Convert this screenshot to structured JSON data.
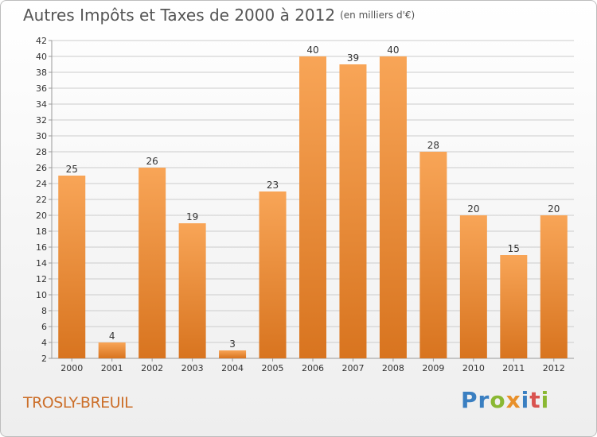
{
  "header": {
    "title": "Autres Impôts et Taxes de 2000 à 2012",
    "unit": "(en milliers d'€)"
  },
  "footer": {
    "commune": "TROSLY-BREUIL",
    "logo_letters": [
      {
        "ch": "P",
        "color": "#3a7fc1"
      },
      {
        "ch": "r",
        "color": "#3a7fc1"
      },
      {
        "ch": "o",
        "color": "#8ab833"
      },
      {
        "ch": "x",
        "color": "#e8902a"
      },
      {
        "ch": "i",
        "color": "#3a7fc1"
      },
      {
        "ch": "t",
        "color": "#d9534f"
      },
      {
        "ch": "i",
        "color": "#8ab833"
      }
    ]
  },
  "colors": {
    "bar_top": "#f8a557",
    "bar_bottom": "#d8741f",
    "grid": "#cccccc",
    "axis_text": "#333333"
  },
  "chart_data": {
    "type": "bar",
    "categories": [
      "2000",
      "2001",
      "2002",
      "2003",
      "2004",
      "2005",
      "2006",
      "2007",
      "2008",
      "2009",
      "2010",
      "2011",
      "2012"
    ],
    "values": [
      25,
      4,
      26,
      19,
      3,
      23,
      40,
      39,
      40,
      28,
      20,
      15,
      20
    ],
    "data_labels": [
      "25",
      "4",
      "26",
      "19",
      "3",
      "23",
      "40",
      "39",
      "40",
      "28",
      "20",
      "15",
      "20"
    ],
    "ylim": [
      2,
      42
    ],
    "yticks": [
      2,
      4,
      6,
      8,
      10,
      12,
      14,
      16,
      18,
      20,
      22,
      24,
      26,
      28,
      30,
      32,
      34,
      36,
      38,
      40,
      42
    ],
    "grid": true
  }
}
